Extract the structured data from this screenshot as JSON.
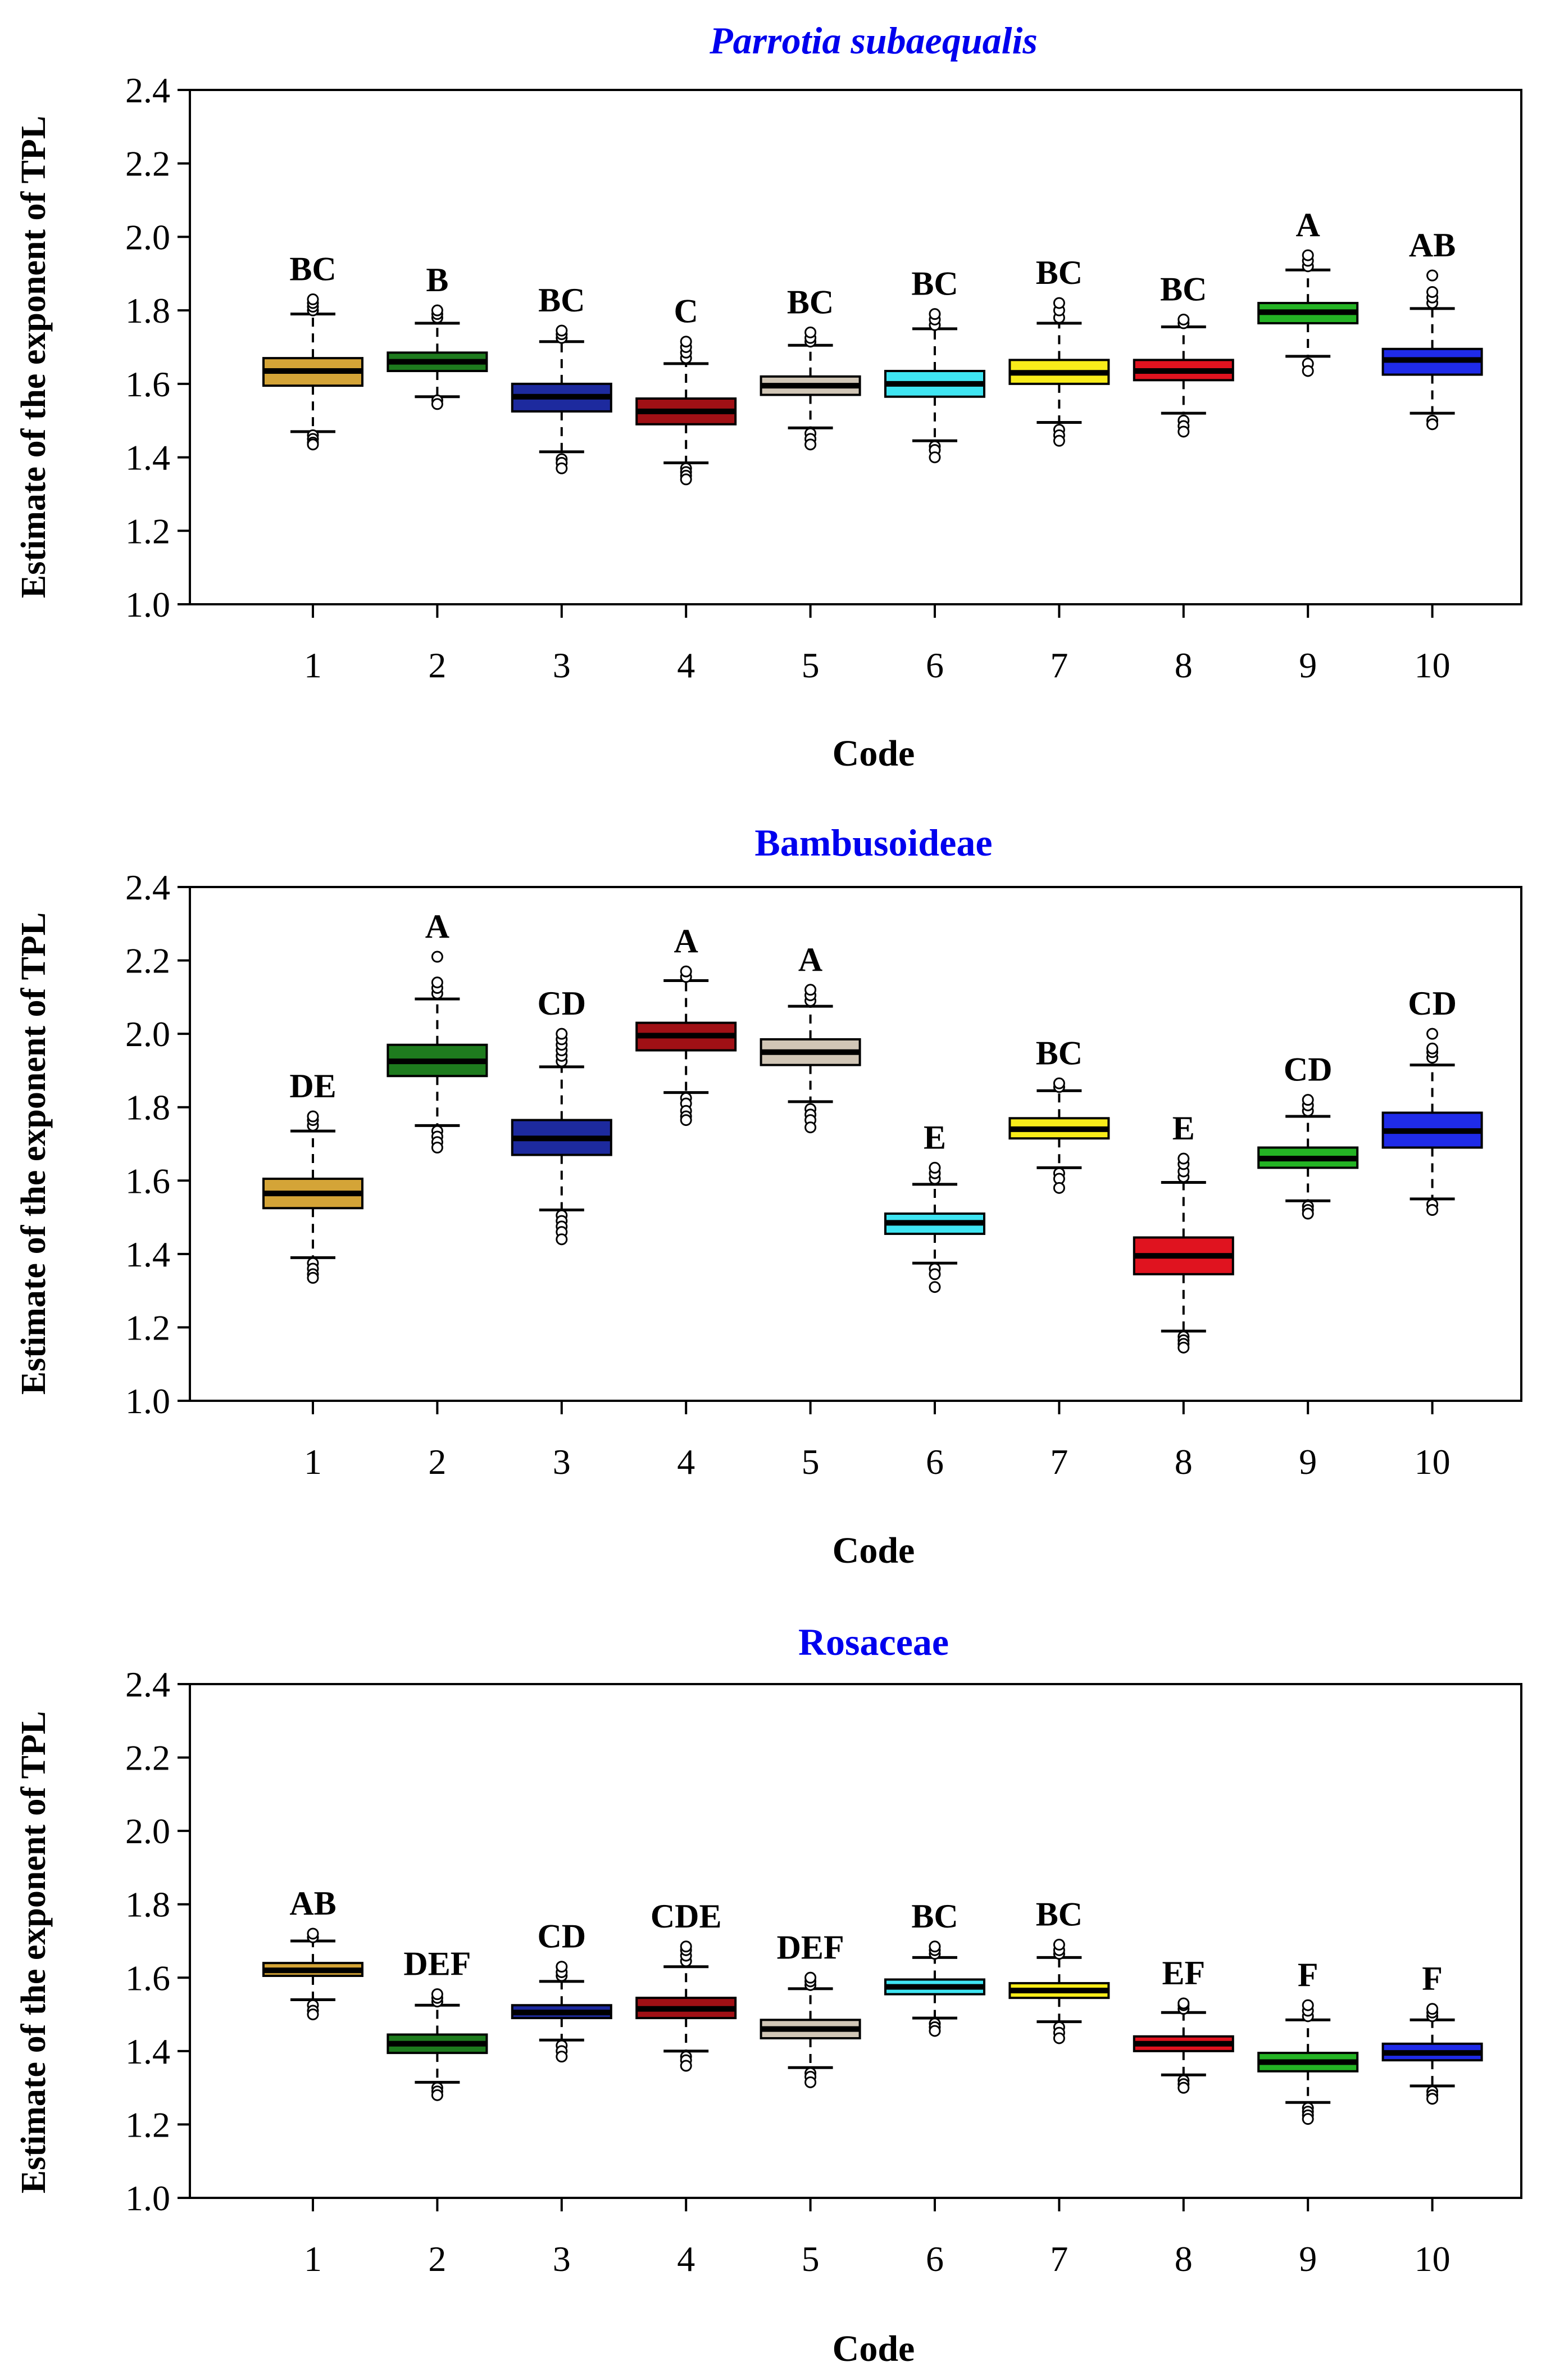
{
  "figure": {
    "categories": [
      "1",
      "2",
      "3",
      "4",
      "5",
      "6",
      "7",
      "8",
      "9",
      "10"
    ],
    "colors": [
      "#D4A437",
      "#1E7B1E",
      "#1D2A9E",
      "#A01015",
      "#D1C6B6",
      "#3FE5F2",
      "#F8EC1A",
      "#E0131F",
      "#24B324",
      "#1F2BE8"
    ]
  },
  "chart_data": [
    {
      "type": "box",
      "title": "Parrotia subaequalis",
      "title_color": "#0000EE",
      "title_italic": true,
      "xlabel": "Code",
      "ylabel": "Estimate of the exponent of TPL",
      "ylim": [
        1.0,
        2.4
      ],
      "yticks": [
        "1.0",
        "1.2",
        "1.4",
        "1.6",
        "1.8",
        "2.0",
        "2.2",
        "2.4"
      ],
      "boxes": [
        {
          "code": "1",
          "letter": "BC",
          "q1": 1.595,
          "median": 1.635,
          "q3": 1.67,
          "whisker_low": 1.47,
          "whisker_high": 1.79,
          "out_low": [
            1.46,
            1.45,
            1.44,
            1.435
          ],
          "out_high": [
            1.8,
            1.81,
            1.82,
            1.83
          ]
        },
        {
          "code": "2",
          "letter": "B",
          "q1": 1.635,
          "median": 1.66,
          "q3": 1.685,
          "whisker_low": 1.565,
          "whisker_high": 1.765,
          "out_low": [
            1.555,
            1.545
          ],
          "out_high": [
            1.78,
            1.79,
            1.8
          ]
        },
        {
          "code": "3",
          "letter": "BC",
          "q1": 1.525,
          "median": 1.565,
          "q3": 1.6,
          "whisker_low": 1.415,
          "whisker_high": 1.715,
          "out_low": [
            1.395,
            1.385,
            1.37
          ],
          "out_high": [
            1.725,
            1.735,
            1.745
          ]
        },
        {
          "code": "4",
          "letter": "C",
          "q1": 1.49,
          "median": 1.525,
          "q3": 1.56,
          "whisker_low": 1.385,
          "whisker_high": 1.655,
          "out_low": [
            1.37,
            1.36,
            1.35,
            1.34
          ],
          "out_high": [
            1.67,
            1.685,
            1.7,
            1.715
          ]
        },
        {
          "code": "5",
          "letter": "BC",
          "q1": 1.57,
          "median": 1.595,
          "q3": 1.62,
          "whisker_low": 1.48,
          "whisker_high": 1.705,
          "out_low": [
            1.465,
            1.45,
            1.435
          ],
          "out_high": [
            1.715,
            1.725,
            1.74
          ]
        },
        {
          "code": "6",
          "letter": "BC",
          "q1": 1.565,
          "median": 1.6,
          "q3": 1.635,
          "whisker_low": 1.445,
          "whisker_high": 1.75,
          "out_low": [
            1.43,
            1.42,
            1.4
          ],
          "out_high": [
            1.76,
            1.775,
            1.79
          ]
        },
        {
          "code": "7",
          "letter": "BC",
          "q1": 1.6,
          "median": 1.63,
          "q3": 1.665,
          "whisker_low": 1.495,
          "whisker_high": 1.765,
          "out_low": [
            1.475,
            1.46,
            1.445
          ],
          "out_high": [
            1.78,
            1.8,
            1.82
          ]
        },
        {
          "code": "8",
          "letter": "BC",
          "q1": 1.61,
          "median": 1.635,
          "q3": 1.665,
          "whisker_low": 1.52,
          "whisker_high": 1.755,
          "out_low": [
            1.5,
            1.485,
            1.47
          ],
          "out_high": [
            1.765,
            1.775
          ]
        },
        {
          "code": "9",
          "letter": "A",
          "q1": 1.765,
          "median": 1.795,
          "q3": 1.82,
          "whisker_low": 1.675,
          "whisker_high": 1.91,
          "out_low": [
            1.655,
            1.635
          ],
          "out_high": [
            1.92,
            1.935,
            1.95
          ]
        },
        {
          "code": "10",
          "letter": "AB",
          "q1": 1.625,
          "median": 1.665,
          "q3": 1.695,
          "whisker_low": 1.52,
          "whisker_high": 1.805,
          "out_low": [
            1.5,
            1.49
          ],
          "out_high": [
            1.82,
            1.835,
            1.85,
            1.895
          ]
        }
      ]
    },
    {
      "type": "box",
      "title": "Bambusoideae",
      "title_color": "#0000EE",
      "title_italic": false,
      "xlabel": "Code",
      "ylabel": "Estimate of the exponent of TPL",
      "ylim": [
        1.0,
        2.4
      ],
      "yticks": [
        "1.0",
        "1.2",
        "1.4",
        "1.6",
        "1.8",
        "2.0",
        "2.2",
        "2.4"
      ],
      "boxes": [
        {
          "code": "1",
          "letter": "DE",
          "q1": 1.525,
          "median": 1.565,
          "q3": 1.605,
          "whisker_low": 1.39,
          "whisker_high": 1.735,
          "out_low": [
            1.375,
            1.36,
            1.345,
            1.335
          ],
          "out_high": [
            1.75,
            1.765,
            1.775
          ]
        },
        {
          "code": "2",
          "letter": "A",
          "q1": 1.885,
          "median": 1.925,
          "q3": 1.97,
          "whisker_low": 1.75,
          "whisker_high": 2.095,
          "out_low": [
            1.735,
            1.72,
            1.705,
            1.69
          ],
          "out_high": [
            2.11,
            2.125,
            2.14,
            2.21
          ]
        },
        {
          "code": "3",
          "letter": "CD",
          "q1": 1.67,
          "median": 1.715,
          "q3": 1.765,
          "whisker_low": 1.52,
          "whisker_high": 1.91,
          "out_low": [
            1.505,
            1.49,
            1.475,
            1.46,
            1.44
          ],
          "out_high": [
            1.925,
            1.94,
            1.955,
            1.97,
            1.985,
            2.0
          ]
        },
        {
          "code": "4",
          "letter": "A",
          "q1": 1.955,
          "median": 1.995,
          "q3": 2.03,
          "whisker_low": 1.84,
          "whisker_high": 2.145,
          "out_low": [
            1.825,
            1.81,
            1.79,
            1.775,
            1.765
          ],
          "out_high": [
            2.155,
            2.17
          ]
        },
        {
          "code": "5",
          "letter": "A",
          "q1": 1.915,
          "median": 1.95,
          "q3": 1.985,
          "whisker_low": 1.815,
          "whisker_high": 2.075,
          "out_low": [
            1.795,
            1.78,
            1.765,
            1.745
          ],
          "out_high": [
            2.09,
            2.105,
            2.12
          ]
        },
        {
          "code": "6",
          "letter": "E",
          "q1": 1.455,
          "median": 1.485,
          "q3": 1.51,
          "whisker_low": 1.375,
          "whisker_high": 1.59,
          "out_low": [
            1.36,
            1.345,
            1.31
          ],
          "out_high": [
            1.605,
            1.62,
            1.635
          ]
        },
        {
          "code": "7",
          "letter": "BC",
          "q1": 1.715,
          "median": 1.74,
          "q3": 1.77,
          "whisker_low": 1.635,
          "whisker_high": 1.845,
          "out_low": [
            1.62,
            1.605,
            1.58
          ],
          "out_high": [
            1.855,
            1.865
          ]
        },
        {
          "code": "8",
          "letter": "E",
          "q1": 1.345,
          "median": 1.395,
          "q3": 1.445,
          "whisker_low": 1.19,
          "whisker_high": 1.595,
          "out_low": [
            1.175,
            1.165,
            1.155,
            1.145
          ],
          "out_high": [
            1.61,
            1.625,
            1.645,
            1.66
          ]
        },
        {
          "code": "9",
          "letter": "CD",
          "q1": 1.635,
          "median": 1.66,
          "q3": 1.69,
          "whisker_low": 1.545,
          "whisker_high": 1.775,
          "out_low": [
            1.53,
            1.52,
            1.51
          ],
          "out_high": [
            1.79,
            1.805,
            1.82
          ]
        },
        {
          "code": "10",
          "letter": "CD",
          "q1": 1.69,
          "median": 1.735,
          "q3": 1.785,
          "whisker_low": 1.55,
          "whisker_high": 1.915,
          "out_low": [
            1.535,
            1.52
          ],
          "out_high": [
            1.935,
            1.95,
            1.96,
            2.0
          ]
        }
      ]
    },
    {
      "type": "box",
      "title": "Rosaceae",
      "title_color": "#0000EE",
      "title_italic": false,
      "xlabel": "Code",
      "ylabel": "Estimate of the exponent of TPL",
      "ylim": [
        1.0,
        2.4
      ],
      "yticks": [
        "1.0",
        "1.2",
        "1.4",
        "1.6",
        "1.8",
        "2.0",
        "2.2",
        "2.4"
      ],
      "boxes": [
        {
          "code": "1",
          "letter": "AB",
          "q1": 1.605,
          "median": 1.62,
          "q3": 1.64,
          "whisker_low": 1.54,
          "whisker_high": 1.7,
          "out_low": [
            1.525,
            1.51,
            1.5
          ],
          "out_high": [
            1.71,
            1.72
          ]
        },
        {
          "code": "2",
          "letter": "DEF",
          "q1": 1.395,
          "median": 1.42,
          "q3": 1.445,
          "whisker_low": 1.315,
          "whisker_high": 1.525,
          "out_low": [
            1.3,
            1.29,
            1.28
          ],
          "out_high": [
            1.535,
            1.545,
            1.555
          ]
        },
        {
          "code": "3",
          "letter": "CD",
          "q1": 1.49,
          "median": 1.505,
          "q3": 1.525,
          "whisker_low": 1.43,
          "whisker_high": 1.59,
          "out_low": [
            1.415,
            1.4,
            1.385
          ],
          "out_high": [
            1.605,
            1.615,
            1.63
          ]
        },
        {
          "code": "4",
          "letter": "CDE",
          "q1": 1.49,
          "median": 1.515,
          "q3": 1.545,
          "whisker_low": 1.4,
          "whisker_high": 1.63,
          "out_low": [
            1.385,
            1.375,
            1.36
          ],
          "out_high": [
            1.645,
            1.66,
            1.675,
            1.685
          ]
        },
        {
          "code": "5",
          "letter": "DEF",
          "q1": 1.435,
          "median": 1.46,
          "q3": 1.485,
          "whisker_low": 1.355,
          "whisker_high": 1.57,
          "out_low": [
            1.34,
            1.33,
            1.315
          ],
          "out_high": [
            1.58,
            1.59,
            1.6
          ]
        },
        {
          "code": "6",
          "letter": "BC",
          "q1": 1.555,
          "median": 1.575,
          "q3": 1.595,
          "whisker_low": 1.49,
          "whisker_high": 1.655,
          "out_low": [
            1.475,
            1.465,
            1.455
          ],
          "out_high": [
            1.665,
            1.675,
            1.685
          ]
        },
        {
          "code": "7",
          "letter": "BC",
          "q1": 1.545,
          "median": 1.565,
          "q3": 1.585,
          "whisker_low": 1.48,
          "whisker_high": 1.655,
          "out_low": [
            1.465,
            1.45,
            1.435
          ],
          "out_high": [
            1.665,
            1.675,
            1.69
          ]
        },
        {
          "code": "8",
          "letter": "EF",
          "q1": 1.4,
          "median": 1.42,
          "q3": 1.44,
          "whisker_low": 1.335,
          "whisker_high": 1.505,
          "out_low": [
            1.32,
            1.31,
            1.3
          ],
          "out_high": [
            1.515,
            1.525,
            1.53
          ]
        },
        {
          "code": "9",
          "letter": "F",
          "q1": 1.345,
          "median": 1.37,
          "q3": 1.395,
          "whisker_low": 1.26,
          "whisker_high": 1.485,
          "out_low": [
            1.245,
            1.235,
            1.225,
            1.215
          ],
          "out_high": [
            1.495,
            1.51,
            1.525
          ]
        },
        {
          "code": "10",
          "letter": "F",
          "q1": 1.375,
          "median": 1.395,
          "q3": 1.42,
          "whisker_low": 1.305,
          "whisker_high": 1.485,
          "out_low": [
            1.29,
            1.28,
            1.27
          ],
          "out_high": [
            1.495,
            1.505,
            1.515
          ]
        }
      ]
    }
  ]
}
